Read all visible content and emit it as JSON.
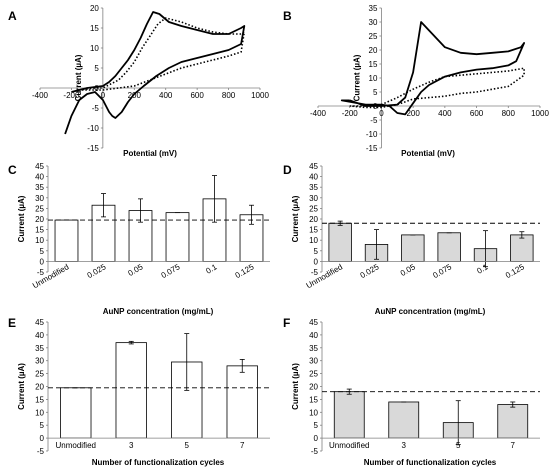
{
  "figure": {
    "panels": [
      {
        "label": "A"
      },
      {
        "label": "B"
      },
      {
        "label": "C"
      },
      {
        "label": "D"
      },
      {
        "label": "E"
      },
      {
        "label": "F"
      }
    ]
  },
  "chart_data": [
    {
      "panel": "A",
      "type": "line",
      "xlabel": "Potential (mV)",
      "ylabel": "Current (µA)",
      "xlim": [
        -400,
        1000
      ],
      "ylim": [
        -15,
        20
      ],
      "xticks": [
        -400,
        -200,
        0,
        200,
        400,
        600,
        800,
        1000
      ],
      "yticks": [
        -15,
        -10,
        -5,
        0,
        5,
        10,
        15,
        20
      ],
      "series": [
        {
          "style": "solid",
          "x": [
            -200,
            -100,
            0,
            40,
            80,
            120,
            160,
            200,
            240,
            280,
            320,
            360,
            420,
            500,
            600,
            700,
            800,
            880,
            900,
            880,
            800,
            700,
            600,
            500,
            420,
            340,
            260,
            200,
            160,
            120,
            80,
            60,
            40,
            0,
            -50,
            -100,
            -150,
            -200,
            -240
          ],
          "y": [
            -1,
            0,
            0.5,
            1.5,
            3,
            5,
            7,
            9.5,
            12.5,
            16,
            19,
            18.5,
            16.5,
            15.5,
            14.5,
            13.5,
            13.5,
            15,
            15.5,
            11,
            9.5,
            8.5,
            7.5,
            6.5,
            5,
            3,
            0.5,
            -1.5,
            -3.5,
            -6,
            -7.5,
            -7,
            -6,
            -3,
            -1,
            -1.5,
            -3,
            -7,
            -11.5
          ]
        },
        {
          "style": "dotted",
          "x": [
            -150,
            -50,
            0,
            50,
            100,
            150,
            200,
            250,
            300,
            350,
            400,
            500,
            600,
            700,
            800,
            880,
            900,
            880,
            800,
            700,
            600,
            500,
            400,
            300,
            200,
            100,
            0,
            -100,
            -150
          ],
          "y": [
            -0.5,
            0,
            0,
            1,
            2,
            4,
            6.5,
            10,
            13,
            16,
            17.5,
            16.5,
            15,
            14,
            13.5,
            13.5,
            14,
            9,
            8,
            7,
            6,
            5,
            3.5,
            2,
            0.5,
            0,
            -0.5,
            -0.5,
            -0.5
          ]
        }
      ]
    },
    {
      "panel": "B",
      "type": "line",
      "xlabel": "Potential (mV)",
      "ylabel": "Current (µA)",
      "xlim": [
        -400,
        1000
      ],
      "ylim": [
        -15,
        35
      ],
      "xticks": [
        -400,
        -200,
        0,
        200,
        400,
        600,
        800,
        1000
      ],
      "yticks": [
        -15,
        -10,
        -5,
        0,
        5,
        10,
        15,
        20,
        25,
        30,
        35
      ],
      "series": [
        {
          "style": "solid",
          "x": [
            -200,
            -100,
            0,
            100,
            150,
            200,
            250,
            300,
            400,
            500,
            600,
            700,
            800,
            880,
            900,
            850,
            800,
            700,
            600,
            500,
            400,
            300,
            250,
            200,
            150,
            100,
            50,
            0,
            -100,
            -200,
            -250,
            -200
          ],
          "y": [
            2,
            0,
            0,
            0.5,
            3,
            12,
            30,
            27,
            21,
            19,
            18.5,
            19,
            19.5,
            21,
            22.5,
            16,
            14.5,
            13.5,
            13,
            12,
            10.5,
            7.5,
            5,
            1,
            -3,
            -2.5,
            0,
            0.5,
            0.5,
            1.5,
            2,
            2
          ]
        },
        {
          "style": "dotted",
          "x": [
            -200,
            -100,
            0,
            100,
            200,
            300,
            400,
            500,
            600,
            700,
            800,
            900,
            900,
            800,
            700,
            600,
            500,
            400,
            300,
            200,
            100,
            0,
            -100,
            -200
          ],
          "y": [
            0,
            0,
            0.5,
            3,
            6,
            8.5,
            10.5,
            11,
            11.5,
            12,
            12.5,
            13.5,
            11,
            7,
            6,
            5,
            4.5,
            3.5,
            3,
            2.5,
            0.5,
            -0.5,
            -0.5,
            0
          ]
        }
      ]
    },
    {
      "panel": "C",
      "type": "bar",
      "fill": "#ffffff",
      "xlabel": "AuNP concentration (mg/mL)",
      "ylabel": "Current (µA)",
      "ylim": [
        -5,
        45
      ],
      "yticks": [
        -5,
        0,
        5,
        10,
        15,
        20,
        25,
        30,
        35,
        40,
        45
      ],
      "categories": [
        "Unmodified",
        "0.025",
        "0.05",
        "0.075",
        "0.1",
        "0.125"
      ],
      "values": [
        19.5,
        26.5,
        24,
        23,
        29.5,
        22
      ],
      "errors": [
        0,
        5.5,
        5.5,
        0,
        11,
        4.5
      ],
      "reference_line": 19.5
    },
    {
      "panel": "D",
      "type": "bar",
      "fill": "#d9d9d9",
      "xlabel": "AuNP concentration (mg/mL)",
      "ylabel": "Current (µA)",
      "ylim": [
        -5,
        45
      ],
      "yticks": [
        -5,
        0,
        5,
        10,
        15,
        20,
        25,
        30,
        35,
        40,
        45
      ],
      "categories": [
        "Unmodified",
        "0.025",
        "0.05",
        "0.075",
        "0.1",
        "0.125"
      ],
      "values": [
        18,
        8,
        12.5,
        13.5,
        6,
        12.5
      ],
      "errors": [
        1,
        7,
        0,
        0,
        8.5,
        1.5
      ],
      "reference_line": 18
    },
    {
      "panel": "E",
      "type": "bar",
      "fill": "#ffffff",
      "xlabel": "Number of functionalization cycles",
      "ylabel": "Current (µA)",
      "ylim": [
        -5,
        45
      ],
      "yticks": [
        -5,
        0,
        5,
        10,
        15,
        20,
        25,
        30,
        35,
        40,
        45
      ],
      "categories": [
        "Unmodified",
        "3",
        "5",
        "7"
      ],
      "values": [
        19.5,
        37,
        29.5,
        28
      ],
      "errors": [
        0,
        0.5,
        11,
        2.5
      ],
      "reference_line": 19.5
    },
    {
      "panel": "F",
      "type": "bar",
      "fill": "#d9d9d9",
      "xlabel": "Number of functionalization cycles",
      "ylabel": "Current (µA)",
      "ylim": [
        -5,
        45
      ],
      "yticks": [
        -5,
        0,
        5,
        10,
        15,
        20,
        25,
        30,
        35,
        40,
        45
      ],
      "categories": [
        "Unmodified",
        "3",
        "5",
        "7"
      ],
      "values": [
        18,
        14,
        6,
        13
      ],
      "errors": [
        1,
        0,
        8.5,
        1
      ],
      "reference_line": 18
    }
  ]
}
